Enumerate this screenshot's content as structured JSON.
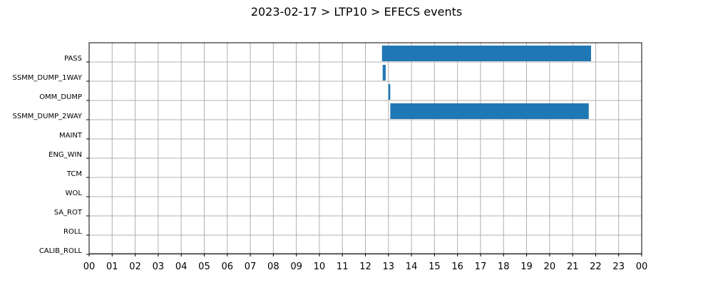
{
  "chart_data": {
    "type": "bar",
    "orientation": "horizontal-timeline",
    "title": "2023-02-17 > LTP10 > EFECS events",
    "xlabel": "",
    "ylabel": "",
    "xlim": [
      0,
      24
    ],
    "x_tick_labels": [
      "00",
      "01",
      "02",
      "03",
      "04",
      "05",
      "06",
      "07",
      "08",
      "09",
      "10",
      "11",
      "12",
      "13",
      "14",
      "15",
      "16",
      "17",
      "18",
      "19",
      "20",
      "21",
      "22",
      "23",
      "00"
    ],
    "categories": [
      "PASS",
      "SSMM_DUMP_1WAY",
      "OMM_DUMP",
      "SSMM_DUMP_2WAY",
      "MAINT",
      "ENG_WIN",
      "TCM",
      "WOL",
      "SA_ROT",
      "ROLL",
      "CALIB_ROLL"
    ],
    "series": [
      {
        "color": "#1f77b4",
        "events": [
          {
            "category": "PASS",
            "start": 12.72,
            "end": 21.8
          },
          {
            "category": "SSMM_DUMP_1WAY",
            "start": 12.75,
            "end": 12.88
          },
          {
            "category": "OMM_DUMP",
            "start": 13.0,
            "end": 13.08
          },
          {
            "category": "SSMM_DUMP_2WAY",
            "start": 13.08,
            "end": 21.7
          }
        ]
      }
    ],
    "grid": true
  }
}
